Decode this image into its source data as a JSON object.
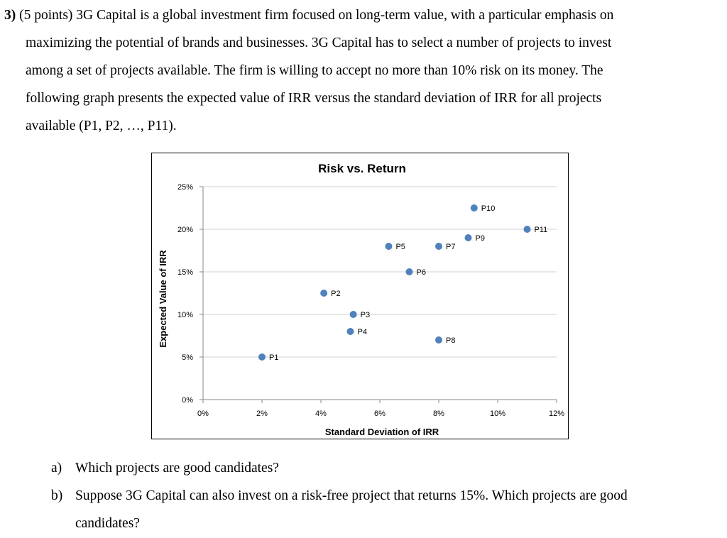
{
  "problem": {
    "number": "3)",
    "lines": [
      "(5 points) 3G Capital is a global investment firm focused on long-term value, with a particular emphasis on",
      "maximizing the potential of brands and businesses. 3G Capital has to select a number of projects to invest",
      "among a set of projects available. The firm is willing to accept no more than 10% risk on its money. The",
      "following graph presents the expected value of IRR versus the standard deviation of IRR for all projects",
      "available (P1, P2, …, P11)."
    ]
  },
  "chart_data": {
    "type": "scatter",
    "title": "Risk vs. Return",
    "xlabel": "Standard Deviation of IRR",
    "ylabel": "Expected Value of IRR",
    "xlim": [
      0,
      12
    ],
    "ylim": [
      0,
      25
    ],
    "x_ticks": [
      "0%",
      "2%",
      "4%",
      "6%",
      "8%",
      "10%",
      "12%"
    ],
    "y_ticks": [
      "0%",
      "5%",
      "10%",
      "15%",
      "20%",
      "25%"
    ],
    "grid": "horizontal",
    "marker_color": "#4F81BD",
    "points": [
      {
        "label": "P1",
        "x": 2.0,
        "y": 5.0
      },
      {
        "label": "P2",
        "x": 4.1,
        "y": 12.5
      },
      {
        "label": "P3",
        "x": 5.1,
        "y": 10.0
      },
      {
        "label": "P4",
        "x": 5.0,
        "y": 8.0
      },
      {
        "label": "P5",
        "x": 6.3,
        "y": 18.0
      },
      {
        "label": "P6",
        "x": 7.0,
        "y": 15.0
      },
      {
        "label": "P7",
        "x": 8.0,
        "y": 18.0
      },
      {
        "label": "P8",
        "x": 8.0,
        "y": 7.0
      },
      {
        "label": "P9",
        "x": 9.0,
        "y": 19.0
      },
      {
        "label": "P10",
        "x": 9.2,
        "y": 22.5
      },
      {
        "label": "P11",
        "x": 11.0,
        "y": 20.0
      }
    ]
  },
  "questions": [
    {
      "label": "a)",
      "lines": [
        "Which projects are good candidates?"
      ]
    },
    {
      "label": "b)",
      "lines": [
        "Suppose 3G Capital can also invest on a risk-free project that returns 15%. Which projects are good",
        "candidates?"
      ]
    }
  ]
}
